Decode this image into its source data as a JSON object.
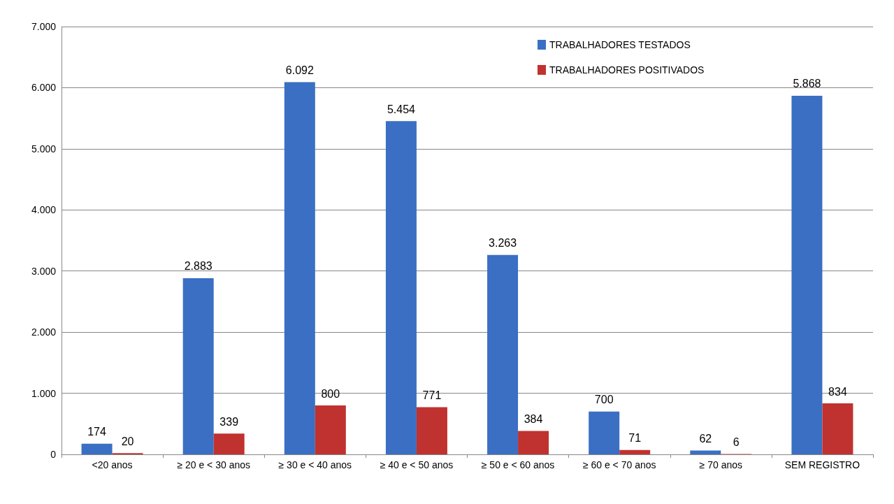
{
  "chart_data": {
    "type": "bar",
    "categories": [
      "<20 anos",
      "≥ 20 e < 30 anos",
      "≥ 30 e < 40 anos",
      "≥ 40 e < 50 anos",
      "≥ 50 e < 60 anos",
      "≥ 60 e < 70 anos",
      "≥ 70 anos",
      "SEM REGISTRO"
    ],
    "series": [
      {
        "name": "TRABALHADORES TESTADOS",
        "color": "#3a6fc4",
        "values": [
          174,
          2883,
          6092,
          5454,
          3263,
          700,
          62,
          5868
        ],
        "value_labels": [
          "174",
          "2.883",
          "6.092",
          "5.454",
          "3.263",
          "700",
          "62",
          "5.868"
        ]
      },
      {
        "name": "TRABALHADORES POSITIVADOS",
        "color": "#c0322f",
        "values": [
          20,
          339,
          800,
          771,
          384,
          71,
          6,
          834
        ],
        "value_labels": [
          "20",
          "339",
          "800",
          "771",
          "384",
          "71",
          "6",
          "834"
        ]
      }
    ],
    "ylim": [
      0,
      7000
    ],
    "yticks": [
      0,
      {
        "value": 1000,
        "label": "1.000"
      },
      {
        "value": 2000,
        "label": "2.000"
      },
      {
        "value": 3000,
        "label": "3.000"
      },
      {
        "value": 4000,
        "label": "4.000"
      },
      {
        "value": 5000,
        "label": "5.000"
      },
      {
        "value": 6000,
        "label": "6.000"
      },
      {
        "value": 7000,
        "label": "7.000"
      }
    ],
    "grid": "y",
    "legend": "top right"
  }
}
